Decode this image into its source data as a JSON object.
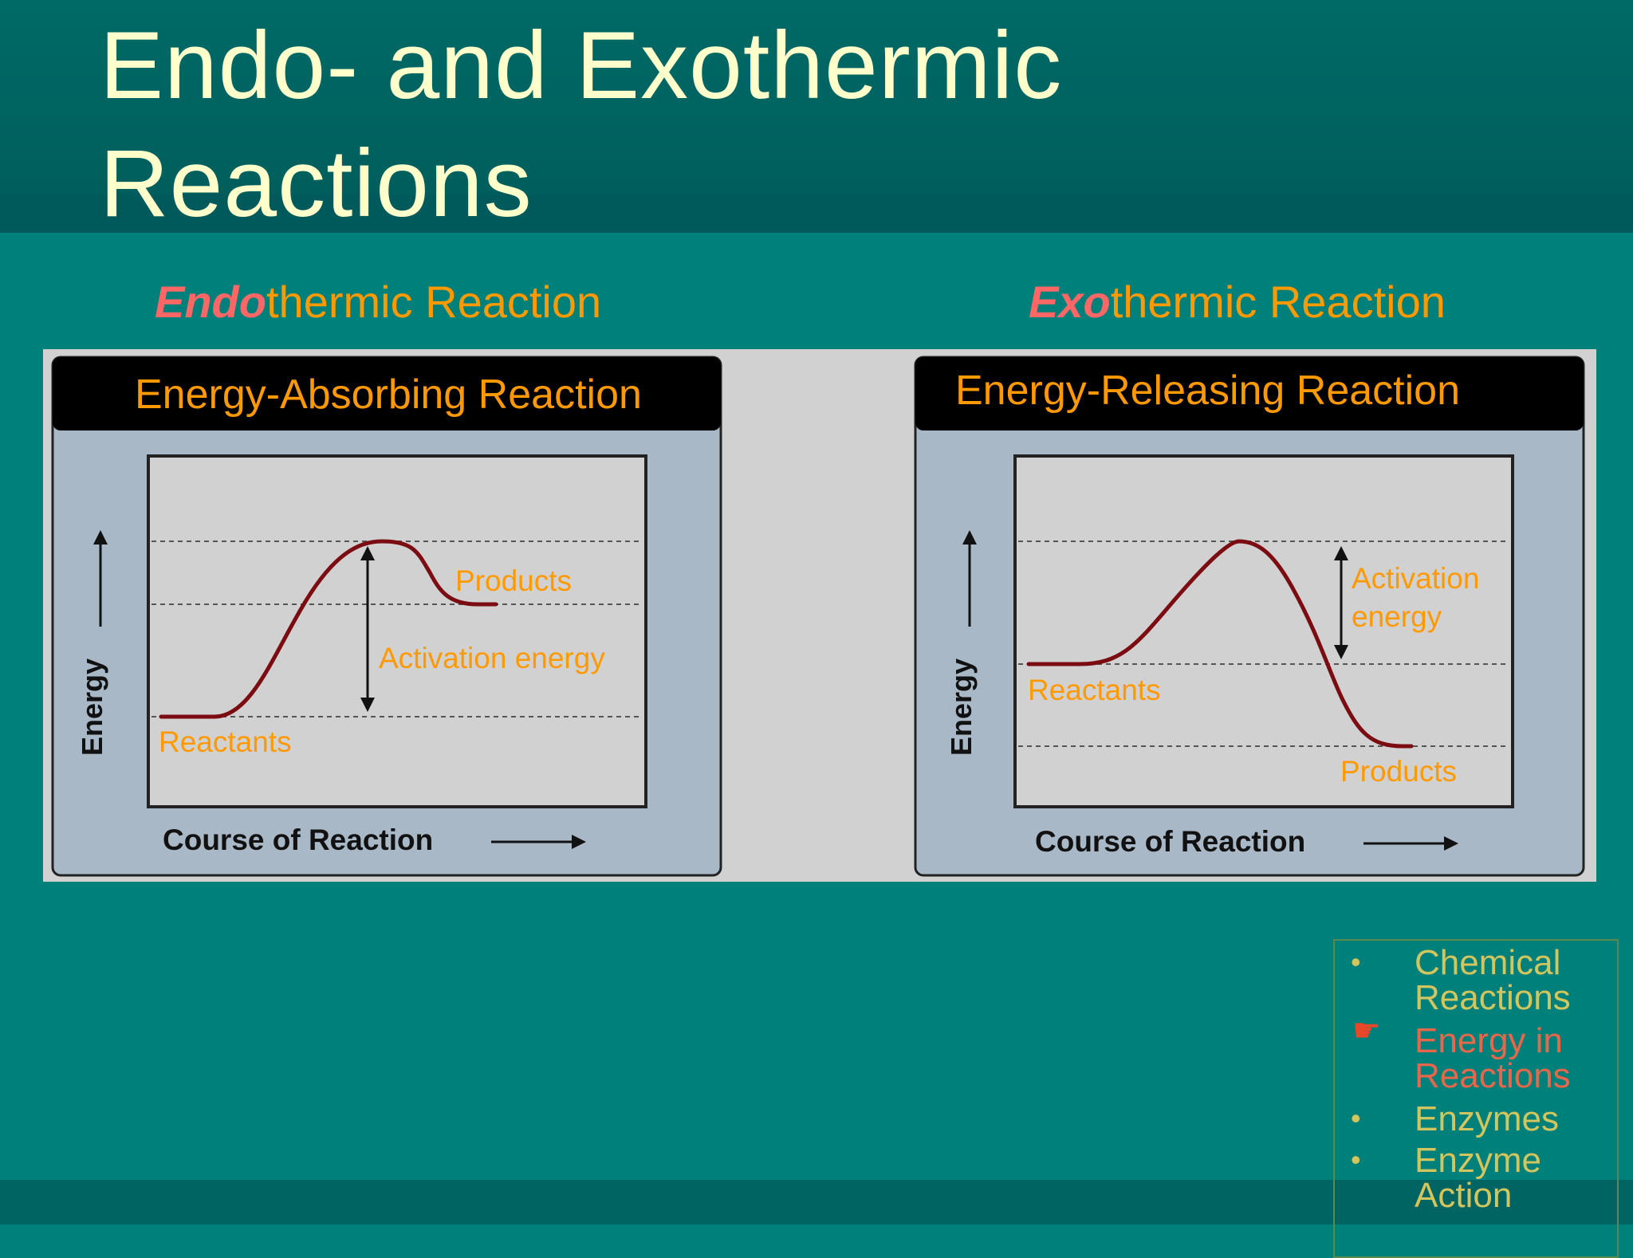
{
  "slide": {
    "title": "Endo- and Exothermic Reactions",
    "subheads": {
      "endo": {
        "emphasis": "Endo",
        "rest": "thermic Reaction"
      },
      "exo": {
        "emphasis": "Exo",
        "rest": "thermic Reaction"
      }
    }
  },
  "diagrams": {
    "endothermic": {
      "banner": "Energy-Absorbing Reaction",
      "y_axis": "Energy",
      "x_axis": "Course of Reaction",
      "labels": {
        "products": "Products",
        "activation": "Activation energy",
        "reactants": "Reactants"
      }
    },
    "exothermic": {
      "banner": "Energy-Releasing Reaction",
      "y_axis": "Energy",
      "x_axis": "Course of Reaction",
      "labels": {
        "activation_line1": "Activation",
        "activation_line2": "energy",
        "reactants": "Reactants",
        "products": "Products"
      }
    }
  },
  "nav": {
    "items": [
      {
        "line1": "Chemical",
        "line2": "Reactions",
        "state": "bullet"
      },
      {
        "line1": "Energy in",
        "line2": "Reactions",
        "state": "current"
      },
      {
        "line1": "Enzymes",
        "line2": "",
        "state": "bullet"
      },
      {
        "line1": "Enzyme",
        "line2": "Action",
        "state": "bullet"
      }
    ]
  },
  "colors": {
    "background": "#00807a",
    "title": "#ffffcc",
    "subhead": "#ff9900",
    "subhead_emphasis": "#ff6666",
    "diagram_label": "#ff9900",
    "curve": "#7a0c12",
    "panel": "#a9b8c7",
    "nav_text": "#d2c55d",
    "nav_current": "#e8674a"
  }
}
